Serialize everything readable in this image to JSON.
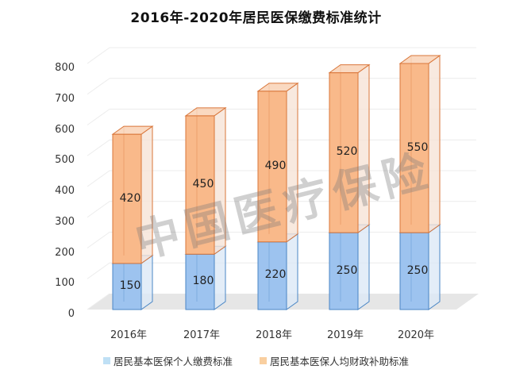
{
  "chart_data": {
    "type": "bar",
    "stacked": true,
    "style": "3d-column",
    "title": "2016年-2020年居民医保缴费标准统计",
    "categories": [
      "2016年",
      "2017年",
      "2018年",
      "2019年",
      "2020年"
    ],
    "series": [
      {
        "name": "居民基本医保个人缴费标准",
        "values": [
          150,
          180,
          220,
          250,
          250
        ],
        "color": "#9dc3ef"
      },
      {
        "name": "居民基本医保人均财政补助标准",
        "values": [
          420,
          450,
          490,
          520,
          550
        ],
        "color": "#f9b98a"
      }
    ],
    "xlabel": "",
    "ylabel": "",
    "ylim": [
      0,
      800
    ],
    "yticks": [
      "0",
      "100",
      "200",
      "300",
      "400",
      "500",
      "600",
      "700",
      "800"
    ],
    "grid": true,
    "legend_position": "bottom",
    "data_labels": true
  },
  "watermark": "中国医疗保险"
}
